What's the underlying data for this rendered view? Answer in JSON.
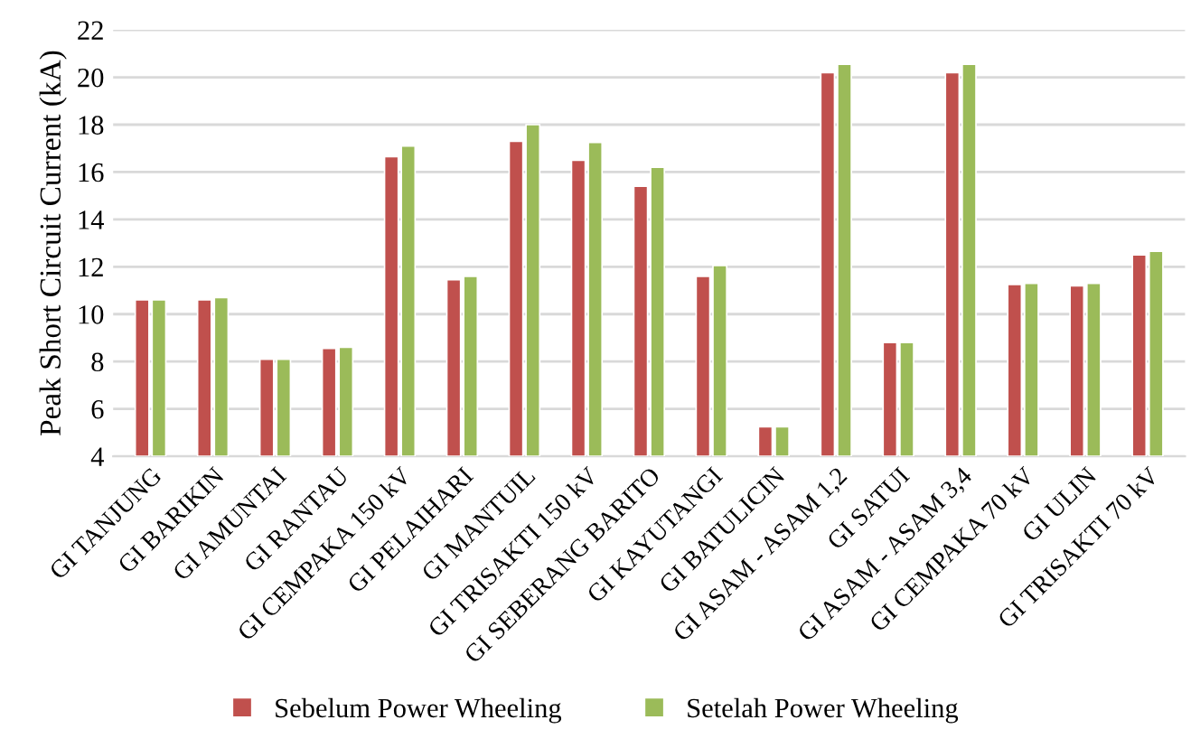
{
  "chart_data": {
    "type": "bar",
    "ylabel": "Peak Short Circuit Current (kA)",
    "categories": [
      "GI TANJUNG",
      "GI BARIKIN",
      "GI AMUNTAI",
      "GI RANTAU",
      "GI CEMPAKA 150 kV",
      "GI PELAIHARI",
      "GI MANTUIL",
      "GI TRISAKTI 150 kV",
      "GI SEBERANG BARITO",
      "GI KAYUTANGI",
      "GI BATULICIN",
      "GI ASAM - ASAM 1,2",
      "GI SATUI",
      "GI ASAM - ASAM 3,4",
      "GI CEMPAKA 70 kV",
      "GI ULIN",
      "GI TRISAKTI 70 kV"
    ],
    "series": [
      {
        "name": "Sebelum Power Wheeling",
        "color": "#c0504d",
        "values": [
          10.6,
          10.6,
          8.1,
          8.55,
          16.65,
          11.45,
          17.3,
          16.5,
          15.4,
          11.6,
          5.25,
          20.2,
          8.8,
          20.2,
          11.25,
          11.2,
          12.5
        ]
      },
      {
        "name": "Setelah Power Wheeling",
        "color": "#9bbb59",
        "values": [
          10.6,
          10.7,
          8.1,
          8.6,
          17.1,
          11.6,
          18.0,
          17.25,
          16.2,
          12.05,
          5.25,
          20.55,
          8.8,
          20.55,
          11.3,
          11.3,
          12.65
        ]
      }
    ],
    "ylim": [
      4,
      22
    ],
    "yticks": [
      4,
      6,
      8,
      10,
      12,
      14,
      16,
      18,
      20,
      22
    ],
    "grid": "y",
    "legend": "bottom"
  }
}
